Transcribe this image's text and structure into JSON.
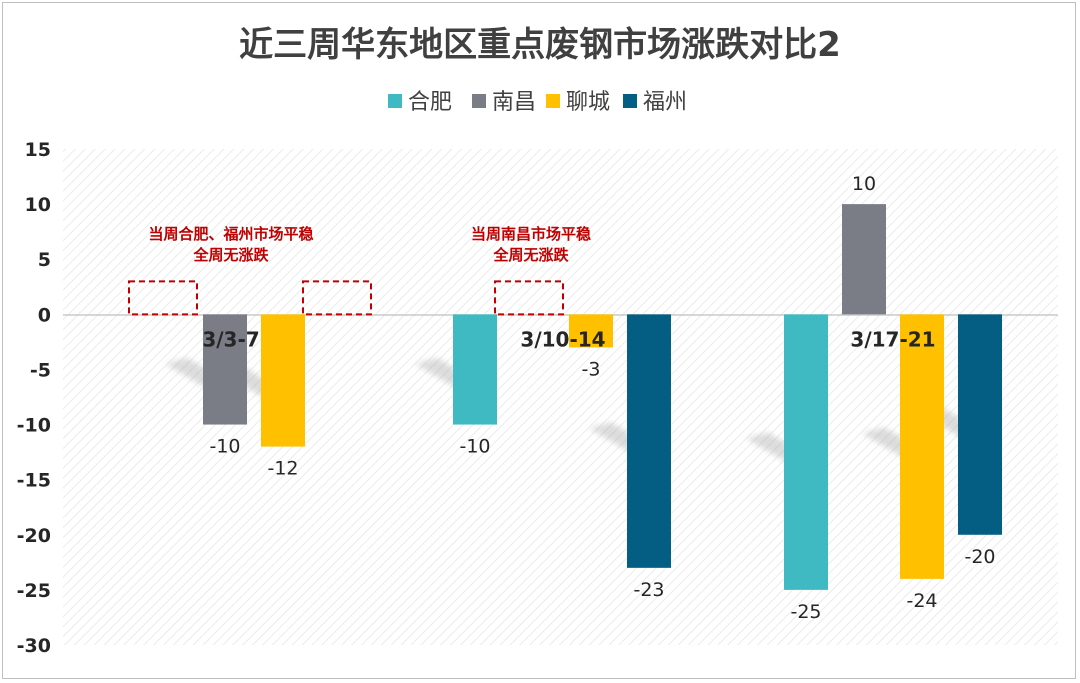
{
  "chart_data": {
    "type": "bar",
    "title": "近三周华东地区重点废钢市场涨跌对比2",
    "categories": [
      "3/3-7",
      "3/10-14",
      "3/17-21"
    ],
    "series": [
      {
        "name": "合肥",
        "color": "#3fbac2",
        "values": [
          0,
          -10,
          -25
        ]
      },
      {
        "name": "南昌",
        "color": "#7a7d86",
        "values": [
          -10,
          0,
          10
        ]
      },
      {
        "name": "聊城",
        "color": "#ffc000",
        "values": [
          -12,
          -3,
          -24
        ]
      },
      {
        "name": "福州",
        "color": "#045d82",
        "values": [
          0,
          -23,
          -20
        ]
      }
    ],
    "ylim": [
      -30,
      15
    ],
    "yticks": [
      "15",
      "10",
      "5",
      "0",
      "-5",
      "-10",
      "-15",
      "-20",
      "-25",
      "-30"
    ],
    "data_labels": {
      "0": [
        "",
        "-10",
        "-12",
        ""
      ],
      "1": [
        "-10",
        "",
        "-3",
        "-23"
      ],
      "2": [
        "-25",
        "10",
        "-24",
        "-20"
      ]
    },
    "legend_position": "top",
    "grid": false,
    "annotations": [
      {
        "category_index": 0,
        "lines": [
          "当周合肥、福州市场平稳",
          "全周无涨跌"
        ],
        "zero_series": [
          0,
          3
        ]
      },
      {
        "category_index": 1,
        "lines": [
          "当周南昌市场平稳",
          "全周无涨跌"
        ],
        "zero_series": [
          1
        ]
      }
    ]
  }
}
